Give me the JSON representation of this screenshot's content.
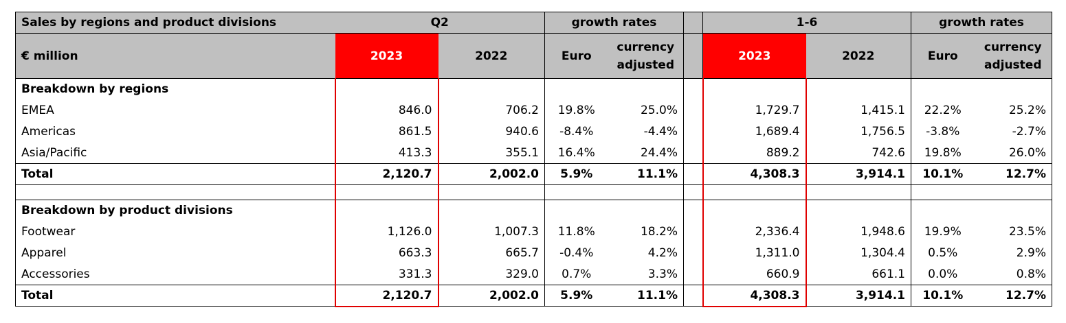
{
  "table": {
    "title": "Sales by regions and product divisions",
    "unit": "€ million",
    "groups": {
      "q2": "Q2",
      "growth1": "growth rates",
      "h1": "1-6",
      "growth2": "growth rates"
    },
    "columns": {
      "y2023": "2023",
      "y2022": "2022",
      "euro": "Euro",
      "currency_adjusted_l1": "currency",
      "currency_adjusted_l2": "adjusted"
    },
    "regions": {
      "heading": "Breakdown by regions",
      "rows": [
        {
          "label": "EMEA",
          "q2_2023": "846.0",
          "q2_2022": "706.2",
          "q2_euro": "19.8%",
          "q2_cur": "25.0%",
          "h1_2023": "1,729.7",
          "h1_2022": "1,415.1",
          "h1_euro": "22.2%",
          "h1_cur": "25.2%"
        },
        {
          "label": "Americas",
          "q2_2023": "861.5",
          "q2_2022": "940.6",
          "q2_euro": "-8.4%",
          "q2_cur": "-4.4%",
          "h1_2023": "1,689.4",
          "h1_2022": "1,756.5",
          "h1_euro": "-3.8%",
          "h1_cur": "-2.7%"
        },
        {
          "label": "Asia/Pacific",
          "q2_2023": "413.3",
          "q2_2022": "355.1",
          "q2_euro": "16.4%",
          "q2_cur": "24.4%",
          "h1_2023": "889.2",
          "h1_2022": "742.6",
          "h1_euro": "19.8%",
          "h1_cur": "26.0%"
        }
      ],
      "total": {
        "label": "Total",
        "q2_2023": "2,120.7",
        "q2_2022": "2,002.0",
        "q2_euro": "5.9%",
        "q2_cur": "11.1%",
        "h1_2023": "4,308.3",
        "h1_2022": "3,914.1",
        "h1_euro": "10.1%",
        "h1_cur": "12.7%"
      }
    },
    "divisions": {
      "heading": "Breakdown by product divisions",
      "rows": [
        {
          "label": "Footwear",
          "q2_2023": "1,126.0",
          "q2_2022": "1,007.3",
          "q2_euro": "11.8%",
          "q2_cur": "18.2%",
          "h1_2023": "2,336.4",
          "h1_2022": "1,948.6",
          "h1_euro": "19.9%",
          "h1_cur": "23.5%"
        },
        {
          "label": "Apparel",
          "q2_2023": "663.3",
          "q2_2022": "665.7",
          "q2_euro": "-0.4%",
          "q2_cur": "4.2%",
          "h1_2023": "1,311.0",
          "h1_2022": "1,304.4",
          "h1_euro": "0.5%",
          "h1_cur": "2.9%"
        },
        {
          "label": "Accessories",
          "q2_2023": "331.3",
          "q2_2022": "329.0",
          "q2_euro": "0.7%",
          "q2_cur": "3.3%",
          "h1_2023": "660.9",
          "h1_2022": "661.1",
          "h1_euro": "0.0%",
          "h1_cur": "0.8%"
        }
      ],
      "total": {
        "label": "Total",
        "q2_2023": "2,120.7",
        "q2_2022": "2,002.0",
        "q2_euro": "5.9%",
        "q2_cur": "11.1%",
        "h1_2023": "4,308.3",
        "h1_2022": "3,914.1",
        "h1_euro": "10.1%",
        "h1_cur": "12.7%"
      }
    },
    "colors": {
      "highlight": "#ff0000",
      "header_bg": "#c0c0c0",
      "border": "#000000"
    }
  }
}
